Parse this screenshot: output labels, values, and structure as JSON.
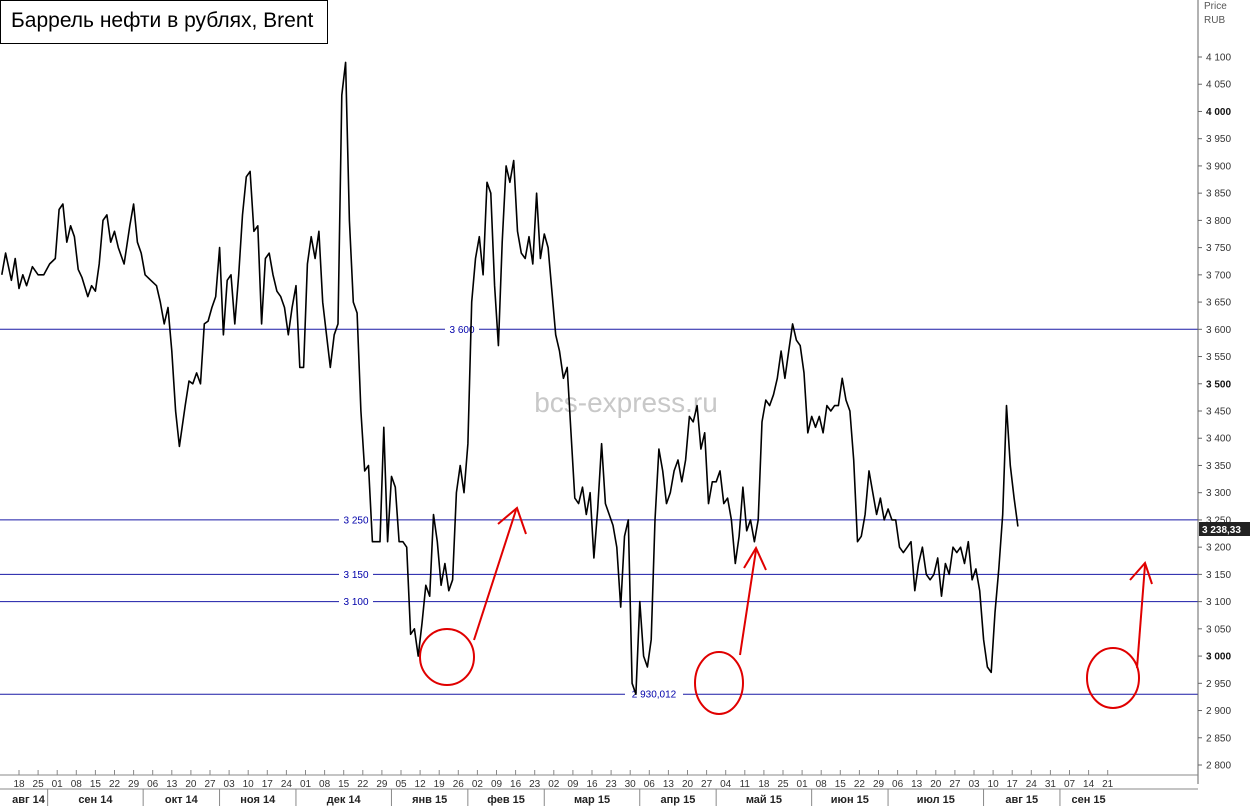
{
  "chart_data": {
    "type": "line",
    "title": "Баррель нефти в рублях, Brent",
    "watermark": "bcs-express.ru",
    "y_axis_unit_line1": "Price",
    "y_axis_unit_line2": "RUB",
    "ylim": [
      2790,
      4130
    ],
    "y_ticks": [
      2800,
      2850,
      2900,
      2950,
      3000,
      3050,
      3100,
      3150,
      3200,
      3250,
      3300,
      3350,
      3400,
      3450,
      3500,
      3550,
      3600,
      3650,
      3700,
      3750,
      3800,
      3850,
      3900,
      3950,
      4000,
      4050,
      4100
    ],
    "y_tick_labels": [
      "2 800",
      "2 850",
      "2 900",
      "2 950",
      "3 000",
      "3 050",
      "3 100",
      "3 150",
      "3 200",
      "3 250",
      "3 300",
      "3 350",
      "3 400",
      "3 450",
      "3 500",
      "3 550",
      "3 600",
      "3 650",
      "3 700",
      "3 750",
      "3 800",
      "3 850",
      "3 900",
      "3 950",
      "4 000",
      "4 050",
      "4 100"
    ],
    "y_tick_bold": [
      3000,
      3500,
      4000
    ],
    "x_day_labels": [
      "18",
      "25",
      "01",
      "08",
      "15",
      "22",
      "29",
      "06",
      "13",
      "20",
      "27",
      "03",
      "10",
      "17",
      "24",
      "01",
      "08",
      "15",
      "22",
      "29",
      "05",
      "12",
      "19",
      "26",
      "02",
      "09",
      "16",
      "23",
      "02",
      "09",
      "16",
      "23",
      "30",
      "06",
      "13",
      "20",
      "27",
      "04",
      "11",
      "18",
      "25",
      "01",
      "08",
      "15",
      "22",
      "29",
      "06",
      "13",
      "20",
      "27",
      "03",
      "10",
      "17",
      "24",
      "31",
      "07",
      "14",
      "21"
    ],
    "x_month_labels": [
      "авг 14",
      "сен 14",
      "окт 14",
      "ноя 14",
      "дек 14",
      "янв 15",
      "фев 15",
      "мар 15",
      "апр 15",
      "май 15",
      "июн 15",
      "июл 15",
      "авг 15",
      "сен 15"
    ],
    "x_month_start_index": [
      0,
      2,
      7,
      11,
      15,
      20,
      24,
      28,
      33,
      37,
      42,
      46,
      51,
      55
    ],
    "levels": [
      {
        "value": 3600,
        "label": "3 600"
      },
      {
        "value": 3250,
        "label": "3 250"
      },
      {
        "value": 3150,
        "label": "3 150"
      },
      {
        "value": 3100,
        "label": "3 100"
      },
      {
        "value": 2930.012,
        "label": "2 930,012"
      }
    ],
    "last_price": {
      "value": 3238.33,
      "label": "3 238,33"
    },
    "series": [
      {
        "points": [
          [
            -0.9,
            3700
          ],
          [
            -0.7,
            3740
          ],
          [
            -0.4,
            3690
          ],
          [
            -0.2,
            3730
          ],
          [
            0.0,
            3675
          ],
          [
            0.2,
            3700
          ],
          [
            0.4,
            3680
          ],
          [
            0.7,
            3715
          ],
          [
            1.0,
            3700
          ],
          [
            1.3,
            3700
          ],
          [
            1.6,
            3720
          ],
          [
            1.9,
            3730
          ],
          [
            2.1,
            3820
          ],
          [
            2.3,
            3830
          ],
          [
            2.5,
            3760
          ],
          [
            2.7,
            3790
          ],
          [
            2.9,
            3770
          ],
          [
            3.1,
            3710
          ],
          [
            3.3,
            3695
          ],
          [
            3.6,
            3660
          ],
          [
            3.8,
            3680
          ],
          [
            4.0,
            3670
          ],
          [
            4.2,
            3720
          ],
          [
            4.4,
            3800
          ],
          [
            4.6,
            3810
          ],
          [
            4.8,
            3760
          ],
          [
            5.0,
            3780
          ],
          [
            5.2,
            3750
          ],
          [
            5.5,
            3720
          ],
          [
            5.8,
            3790
          ],
          [
            6.0,
            3830
          ],
          [
            6.2,
            3760
          ],
          [
            6.4,
            3740
          ],
          [
            6.6,
            3700
          ],
          [
            6.9,
            3690
          ],
          [
            7.2,
            3680
          ],
          [
            7.4,
            3650
          ],
          [
            7.6,
            3610
          ],
          [
            7.8,
            3640
          ],
          [
            8.0,
            3560
          ],
          [
            8.2,
            3450
          ],
          [
            8.4,
            3385
          ],
          [
            8.7,
            3460
          ],
          [
            8.9,
            3505
          ],
          [
            9.1,
            3500
          ],
          [
            9.3,
            3520
          ],
          [
            9.5,
            3500
          ],
          [
            9.7,
            3610
          ],
          [
            9.9,
            3615
          ],
          [
            10.1,
            3640
          ],
          [
            10.3,
            3660
          ],
          [
            10.5,
            3750
          ],
          [
            10.7,
            3590
          ],
          [
            10.9,
            3690
          ],
          [
            11.1,
            3700
          ],
          [
            11.3,
            3610
          ],
          [
            11.5,
            3700
          ],
          [
            11.7,
            3810
          ],
          [
            11.9,
            3880
          ],
          [
            12.1,
            3890
          ],
          [
            12.3,
            3780
          ],
          [
            12.5,
            3790
          ],
          [
            12.7,
            3610
          ],
          [
            12.9,
            3730
          ],
          [
            13.1,
            3740
          ],
          [
            13.3,
            3700
          ],
          [
            13.5,
            3670
          ],
          [
            13.7,
            3660
          ],
          [
            13.9,
            3640
          ],
          [
            14.1,
            3590
          ],
          [
            14.3,
            3640
          ],
          [
            14.5,
            3680
          ],
          [
            14.7,
            3530
          ],
          [
            14.9,
            3530
          ],
          [
            15.1,
            3720
          ],
          [
            15.3,
            3770
          ],
          [
            15.5,
            3730
          ],
          [
            15.7,
            3780
          ],
          [
            15.9,
            3650
          ],
          [
            16.1,
            3590
          ],
          [
            16.3,
            3530
          ],
          [
            16.5,
            3590
          ],
          [
            16.7,
            3610
          ],
          [
            16.9,
            4030
          ],
          [
            17.1,
            4090
          ],
          [
            17.3,
            3800
          ],
          [
            17.5,
            3650
          ],
          [
            17.7,
            3630
          ],
          [
            17.9,
            3450
          ],
          [
            18.1,
            3340
          ],
          [
            18.3,
            3350
          ],
          [
            18.5,
            3210
          ],
          [
            18.9,
            3210
          ],
          [
            19.1,
            3420
          ],
          [
            19.3,
            3210
          ],
          [
            19.5,
            3330
          ],
          [
            19.7,
            3310
          ],
          [
            19.9,
            3210
          ],
          [
            20.1,
            3210
          ],
          [
            20.3,
            3200
          ],
          [
            20.5,
            3040
          ],
          [
            20.7,
            3050
          ],
          [
            20.9,
            3000
          ],
          [
            21.1,
            3060
          ],
          [
            21.3,
            3130
          ],
          [
            21.5,
            3110
          ],
          [
            21.7,
            3260
          ],
          [
            21.9,
            3210
          ],
          [
            22.1,
            3130
          ],
          [
            22.3,
            3170
          ],
          [
            22.5,
            3120
          ],
          [
            22.7,
            3140
          ],
          [
            22.9,
            3300
          ],
          [
            23.1,
            3350
          ],
          [
            23.3,
            3300
          ],
          [
            23.5,
            3390
          ],
          [
            23.7,
            3650
          ],
          [
            23.9,
            3730
          ],
          [
            24.1,
            3770
          ],
          [
            24.3,
            3700
          ],
          [
            24.5,
            3870
          ],
          [
            24.7,
            3850
          ],
          [
            24.9,
            3680
          ],
          [
            25.1,
            3570
          ],
          [
            25.3,
            3760
          ],
          [
            25.5,
            3900
          ],
          [
            25.7,
            3870
          ],
          [
            25.9,
            3910
          ],
          [
            26.1,
            3780
          ],
          [
            26.3,
            3740
          ],
          [
            26.5,
            3730
          ],
          [
            26.7,
            3770
          ],
          [
            26.9,
            3720
          ],
          [
            27.1,
            3850
          ],
          [
            27.3,
            3730
          ],
          [
            27.5,
            3775
          ],
          [
            27.7,
            3750
          ],
          [
            27.9,
            3670
          ],
          [
            28.1,
            3590
          ],
          [
            28.3,
            3560
          ],
          [
            28.5,
            3510
          ],
          [
            28.7,
            3530
          ],
          [
            28.9,
            3410
          ],
          [
            29.1,
            3290
          ],
          [
            29.3,
            3280
          ],
          [
            29.5,
            3310
          ],
          [
            29.7,
            3260
          ],
          [
            29.9,
            3300
          ],
          [
            30.1,
            3180
          ],
          [
            30.3,
            3270
          ],
          [
            30.5,
            3390
          ],
          [
            30.7,
            3280
          ],
          [
            30.9,
            3260
          ],
          [
            31.1,
            3240
          ],
          [
            31.3,
            3200
          ],
          [
            31.5,
            3090
          ],
          [
            31.7,
            3220
          ],
          [
            31.9,
            3250
          ],
          [
            32.1,
            2950
          ],
          [
            32.3,
            2930
          ],
          [
            32.5,
            3100
          ],
          [
            32.7,
            3000
          ],
          [
            32.9,
            2980
          ],
          [
            33.1,
            3030
          ],
          [
            33.3,
            3250
          ],
          [
            33.5,
            3380
          ],
          [
            33.7,
            3340
          ],
          [
            33.9,
            3280
          ],
          [
            34.1,
            3300
          ],
          [
            34.3,
            3340
          ],
          [
            34.5,
            3360
          ],
          [
            34.7,
            3320
          ],
          [
            34.9,
            3360
          ],
          [
            35.1,
            3440
          ],
          [
            35.3,
            3430
          ],
          [
            35.5,
            3460
          ],
          [
            35.7,
            3380
          ],
          [
            35.9,
            3410
          ],
          [
            36.1,
            3280
          ],
          [
            36.3,
            3320
          ],
          [
            36.5,
            3320
          ],
          [
            36.7,
            3340
          ],
          [
            36.9,
            3280
          ],
          [
            37.1,
            3290
          ],
          [
            37.3,
            3250
          ],
          [
            37.5,
            3170
          ],
          [
            37.7,
            3220
          ],
          [
            37.9,
            3310
          ],
          [
            38.1,
            3230
          ],
          [
            38.3,
            3250
          ],
          [
            38.5,
            3210
          ],
          [
            38.7,
            3250
          ],
          [
            38.9,
            3430
          ],
          [
            39.1,
            3470
          ],
          [
            39.3,
            3460
          ],
          [
            39.5,
            3480
          ],
          [
            39.7,
            3510
          ],
          [
            39.9,
            3560
          ],
          [
            40.1,
            3510
          ],
          [
            40.3,
            3560
          ],
          [
            40.5,
            3610
          ],
          [
            40.7,
            3580
          ],
          [
            40.9,
            3570
          ],
          [
            41.1,
            3520
          ],
          [
            41.3,
            3410
          ],
          [
            41.5,
            3440
          ],
          [
            41.7,
            3420
          ],
          [
            41.9,
            3440
          ],
          [
            42.1,
            3410
          ],
          [
            42.3,
            3460
          ],
          [
            42.5,
            3450
          ],
          [
            42.7,
            3460
          ],
          [
            42.9,
            3460
          ],
          [
            43.1,
            3510
          ],
          [
            43.3,
            3470
          ],
          [
            43.5,
            3450
          ],
          [
            43.7,
            3360
          ],
          [
            43.9,
            3210
          ],
          [
            44.1,
            3220
          ],
          [
            44.3,
            3260
          ],
          [
            44.5,
            3340
          ],
          [
            44.7,
            3300
          ],
          [
            44.9,
            3260
          ],
          [
            45.1,
            3290
          ],
          [
            45.3,
            3250
          ],
          [
            45.5,
            3270
          ],
          [
            45.7,
            3250
          ],
          [
            45.9,
            3250
          ],
          [
            46.1,
            3200
          ],
          [
            46.3,
            3190
          ],
          [
            46.5,
            3200
          ],
          [
            46.7,
            3210
          ],
          [
            46.9,
            3120
          ],
          [
            47.1,
            3170
          ],
          [
            47.3,
            3200
          ],
          [
            47.5,
            3150
          ],
          [
            47.7,
            3140
          ],
          [
            47.9,
            3150
          ],
          [
            48.1,
            3180
          ],
          [
            48.3,
            3110
          ],
          [
            48.5,
            3170
          ],
          [
            48.7,
            3150
          ],
          [
            48.9,
            3200
          ],
          [
            49.1,
            3190
          ],
          [
            49.3,
            3200
          ],
          [
            49.5,
            3170
          ],
          [
            49.7,
            3210
          ],
          [
            49.9,
            3140
          ],
          [
            50.1,
            3160
          ],
          [
            50.3,
            3120
          ],
          [
            50.5,
            3030
          ],
          [
            50.7,
            2980
          ],
          [
            50.9,
            2970
          ],
          [
            51.1,
            3080
          ],
          [
            51.3,
            3160
          ],
          [
            51.5,
            3260
          ],
          [
            51.7,
            3460
          ],
          [
            51.9,
            3350
          ],
          [
            52.1,
            3290
          ],
          [
            52.3,
            3238
          ]
        ]
      }
    ]
  }
}
